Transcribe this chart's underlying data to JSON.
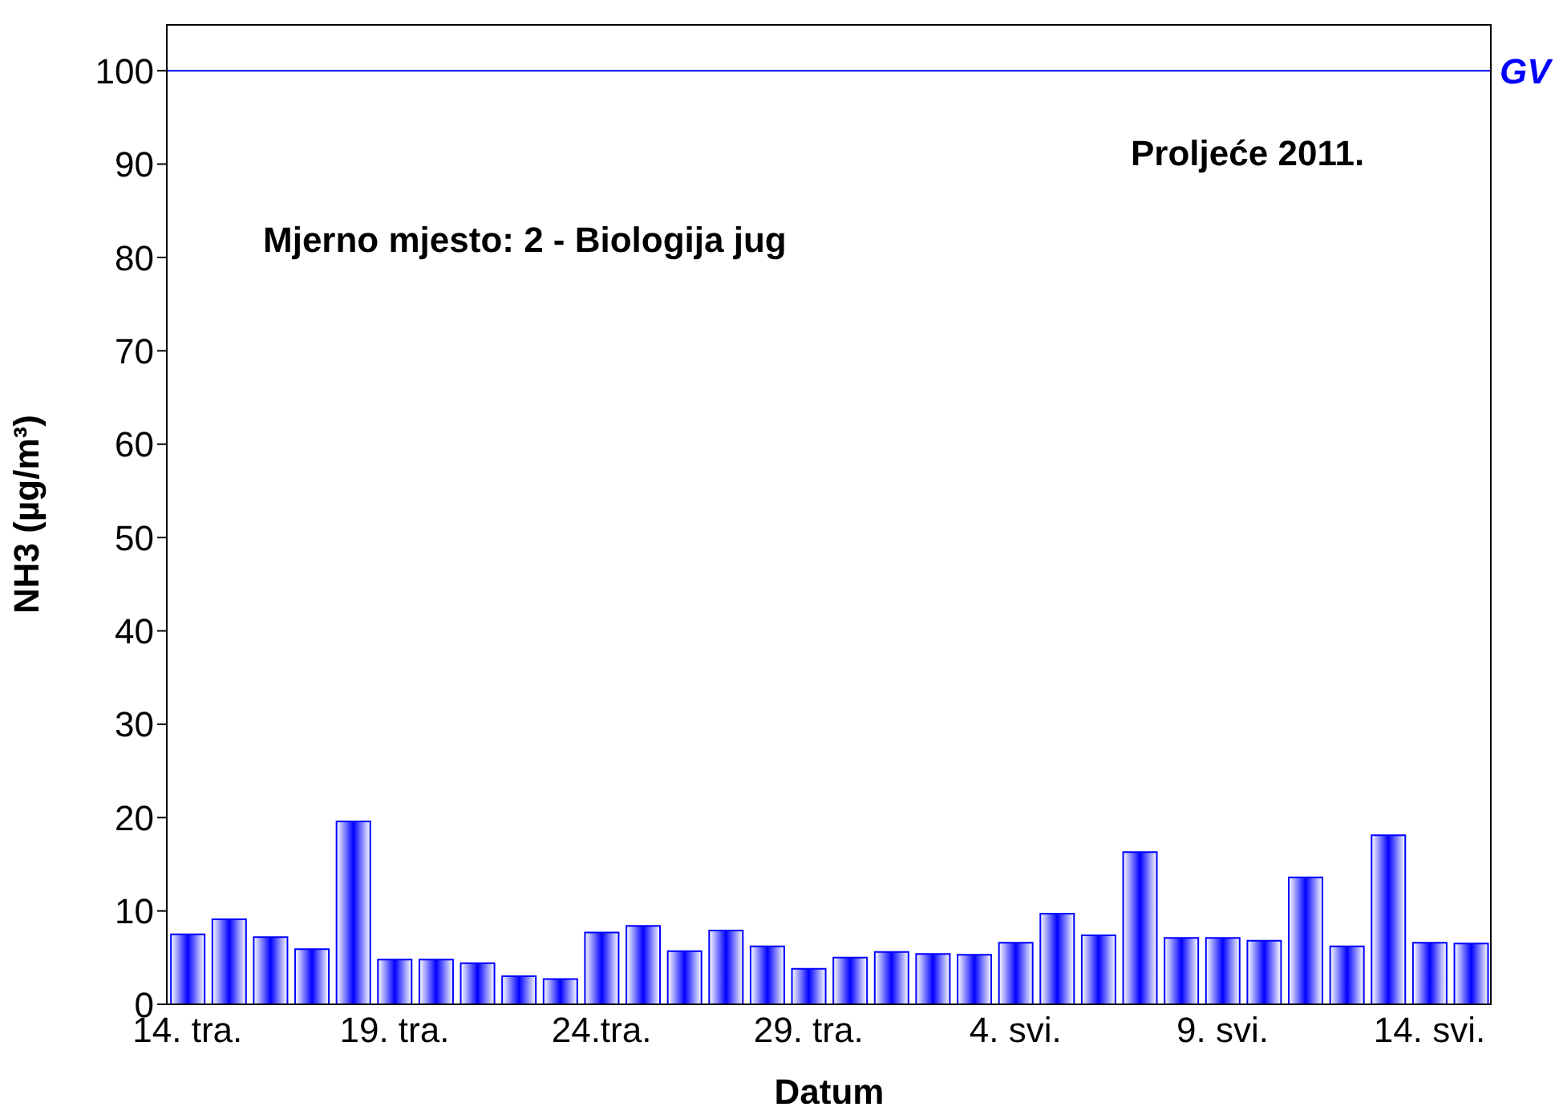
{
  "chart_data": {
    "type": "bar",
    "xlabel": "Datum",
    "ylabel": "NH3 (µg/m³)",
    "annotations": [
      "Proljeće 2011.",
      "Mjerno mjesto: 2 - Biologija jug"
    ],
    "categories": [
      "14. tra.",
      null,
      null,
      null,
      null,
      "19. tra.",
      null,
      null,
      null,
      null,
      "24.tra.",
      null,
      null,
      null,
      null,
      "29. tra.",
      null,
      null,
      null,
      null,
      "4. svi.",
      null,
      null,
      null,
      null,
      "9. svi.",
      null,
      null,
      null,
      null,
      "14. svi.",
      null
    ],
    "values": [
      7.5,
      9.1,
      7.2,
      5.9,
      19.6,
      4.8,
      4.8,
      4.4,
      3.0,
      2.7,
      7.7,
      8.4,
      5.7,
      7.9,
      6.2,
      3.8,
      5.0,
      5.6,
      5.4,
      5.3,
      6.6,
      9.7,
      7.4,
      16.3,
      7.1,
      7.1,
      6.8,
      13.6,
      6.2,
      18.1,
      6.6,
      6.5
    ],
    "color": "#0000ff",
    "ylim": [
      0,
      105
    ],
    "yticks": [
      0,
      10,
      20,
      30,
      40,
      50,
      60,
      70,
      80,
      90,
      100
    ],
    "grid": false,
    "ref_lines": [
      {
        "axis": "y",
        "value": 100,
        "label": "GV",
        "color": "#0000ff"
      }
    ]
  }
}
